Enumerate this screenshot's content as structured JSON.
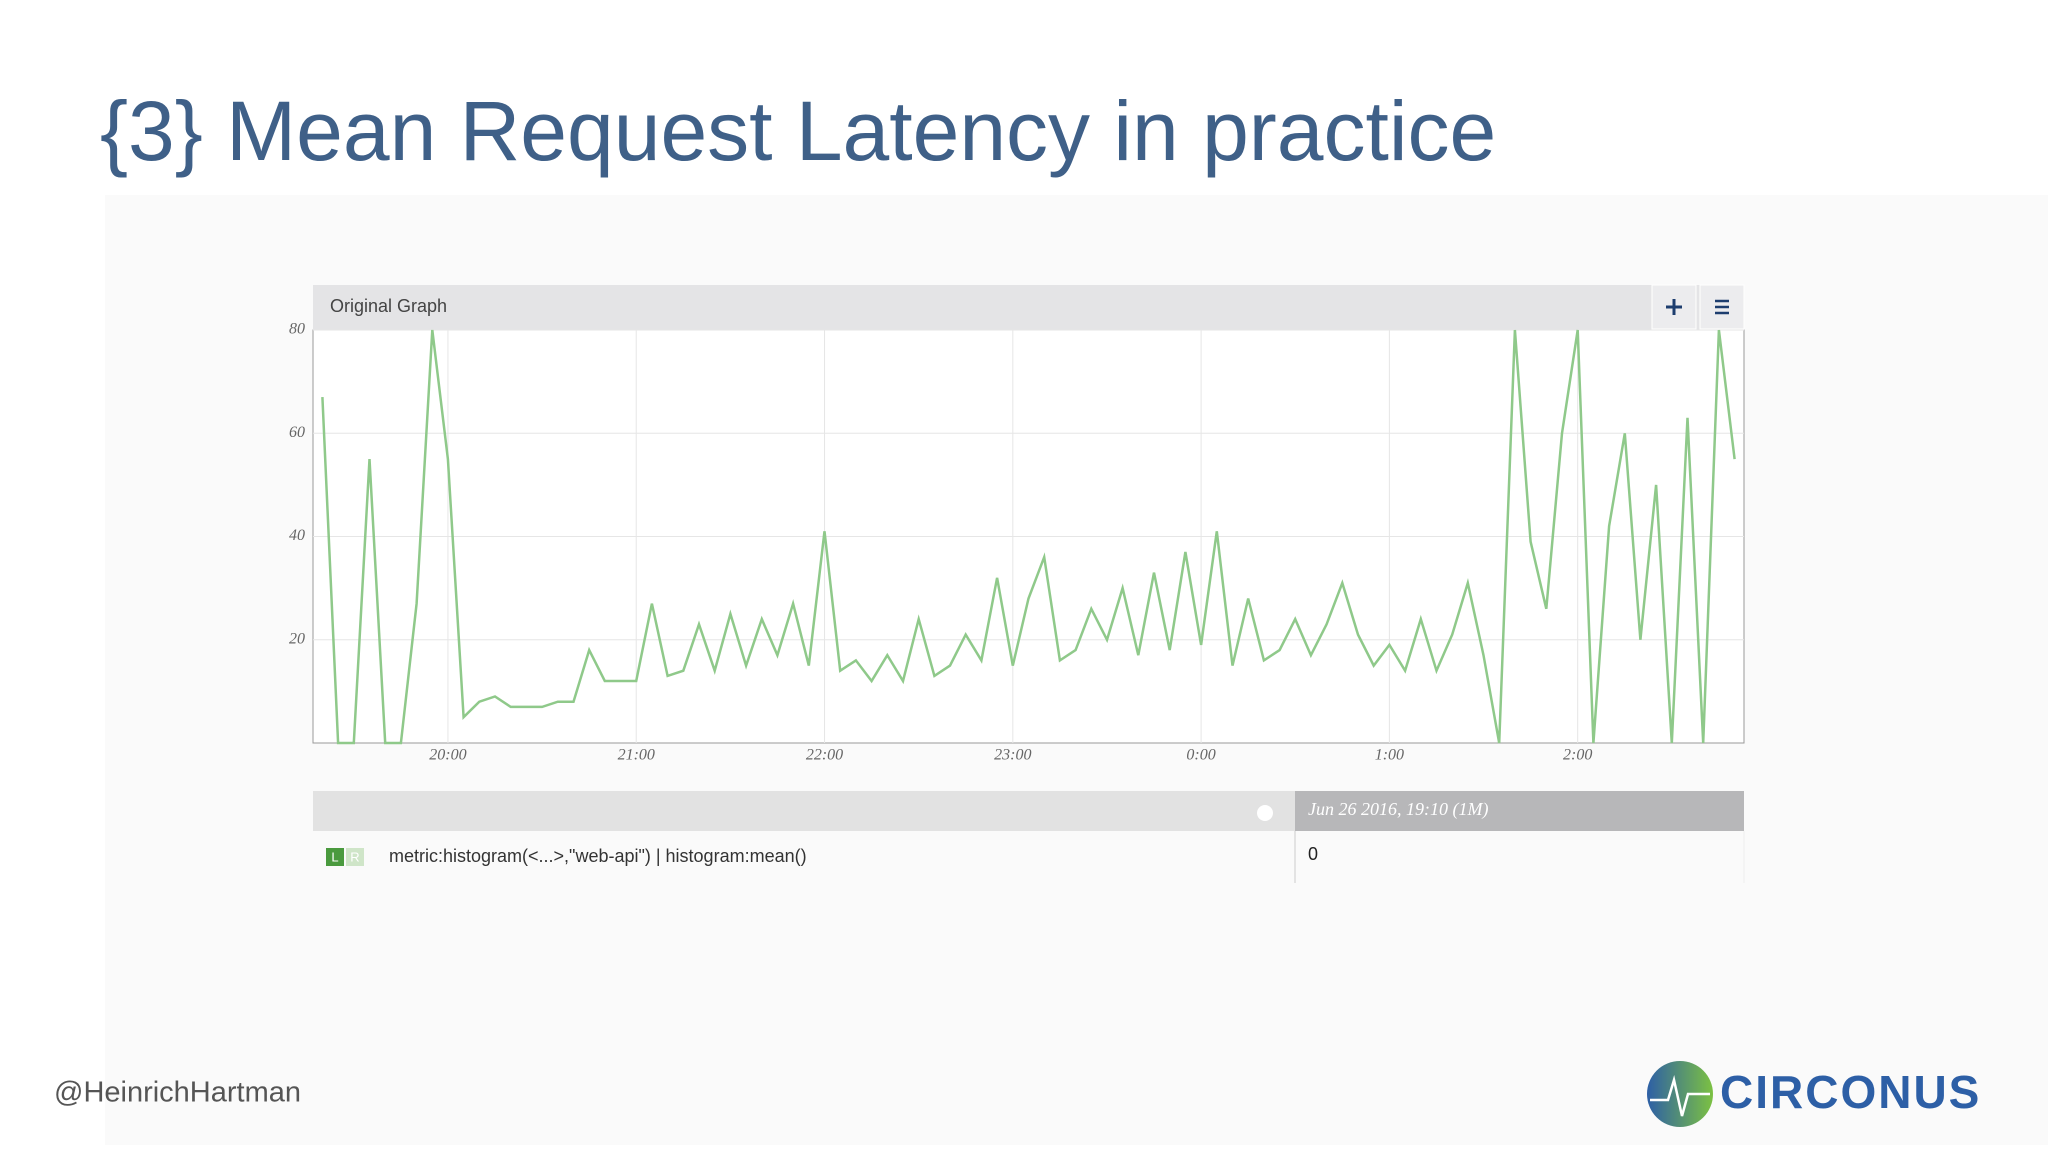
{
  "slide": {
    "title": "{3} Mean Request Latency in practice",
    "author": "@HeinrichHartman",
    "logo": "CIRCONUS"
  },
  "chart_data": {
    "type": "line",
    "title": "Original Graph",
    "x": [
      "19:20",
      "19:25",
      "19:30",
      "19:35",
      "19:40",
      "19:45",
      "19:50",
      "19:55",
      "20:00",
      "20:05",
      "20:10",
      "20:15",
      "20:20",
      "20:25",
      "20:30",
      "20:35",
      "20:40",
      "20:45",
      "20:50",
      "20:55",
      "21:00",
      "21:05",
      "21:10",
      "21:15",
      "21:20",
      "21:25",
      "21:30",
      "21:35",
      "21:40",
      "21:45",
      "21:50",
      "21:55",
      "22:00",
      "22:05",
      "22:10",
      "22:15",
      "22:20",
      "22:25",
      "22:30",
      "22:35",
      "22:40",
      "22:45",
      "22:50",
      "22:55",
      "23:00",
      "23:05",
      "23:10",
      "23:15",
      "23:20",
      "23:25",
      "23:30",
      "23:35",
      "23:40",
      "23:45",
      "23:50",
      "23:55",
      "0:00",
      "0:05",
      "0:10",
      "0:15",
      "0:20",
      "0:25",
      "0:30",
      "0:35",
      "0:40",
      "0:45",
      "0:50",
      "0:55",
      "1:00",
      "1:05",
      "1:10",
      "1:15",
      "1:20",
      "1:25",
      "1:30",
      "1:35",
      "1:40",
      "1:45",
      "1:50",
      "1:55",
      "2:00",
      "2:05",
      "2:10",
      "2:15",
      "2:20",
      "2:25",
      "2:30",
      "2:35",
      "2:40",
      "2:45",
      "2:50"
    ],
    "series": [
      {
        "name": "metric:histogram(<...>,\"web-api\") | histogram:mean()",
        "color": "#8fc98a",
        "values": [
          67,
          0,
          0,
          55,
          0,
          0,
          27,
          80,
          55,
          5,
          8,
          9,
          7,
          7,
          7,
          8,
          8,
          18,
          12,
          12,
          12,
          27,
          13,
          14,
          23,
          14,
          25,
          15,
          24,
          17,
          27,
          15,
          41,
          14,
          16,
          12,
          17,
          12,
          24,
          13,
          15,
          21,
          16,
          32,
          15,
          28,
          36,
          16,
          18,
          26,
          20,
          30,
          17,
          33,
          18,
          37,
          19,
          41,
          15,
          28,
          16,
          18,
          24,
          17,
          23,
          31,
          21,
          15,
          19,
          14,
          24,
          14,
          21,
          31,
          17,
          0,
          80,
          39,
          26,
          60,
          80,
          0,
          42,
          60,
          20,
          50,
          0,
          63,
          0,
          80,
          55
        ]
      }
    ],
    "xlim": [
      "19:17",
      "2:53"
    ],
    "xticks": [
      "20:00",
      "21:00",
      "22:00",
      "23:00",
      "0:00",
      "1:00",
      "2:00"
    ],
    "ylim": [
      0,
      80
    ],
    "yticks": [
      20,
      40,
      60,
      80
    ],
    "grid": true,
    "legend_header": "Jun 26 2016, 19:10 (1M)",
    "legend_value": 0,
    "legend_badges": [
      "L",
      "R"
    ]
  }
}
